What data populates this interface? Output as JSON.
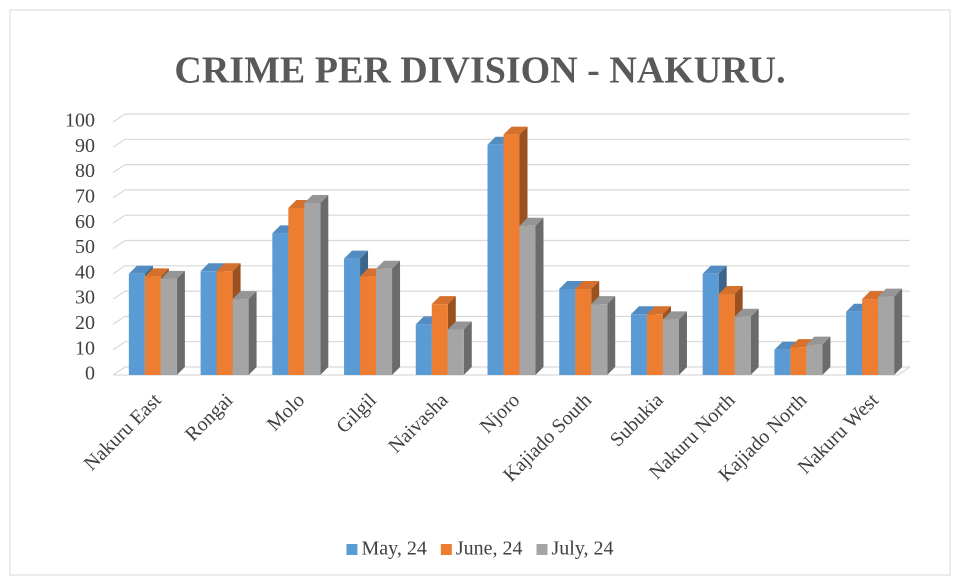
{
  "chart_data": {
    "type": "bar3d",
    "title": "CRIME PER DIVISION - NAKURU.",
    "categories": [
      "Nakuru East",
      "Rongai",
      "Molo",
      "Gilgil",
      "Naivasha",
      "Njoro",
      "Kajiado South",
      "Subukia",
      "Nakuru North",
      "Kajiado North",
      "Nakuru West"
    ],
    "series": [
      {
        "name": "May, 24",
        "color": "#5b9bd5",
        "values": [
          40,
          41,
          56,
          46,
          20,
          91,
          34,
          24,
          40,
          10,
          25
        ]
      },
      {
        "name": "June, 24",
        "color": "#ed7d31",
        "values": [
          39,
          41,
          66,
          39,
          28,
          95,
          34,
          24,
          32,
          11,
          30
        ]
      },
      {
        "name": "July, 24",
        "color": "#a5a5a5",
        "values": [
          38,
          30,
          68,
          42,
          18,
          59,
          28,
          22,
          23,
          12,
          31
        ]
      }
    ],
    "ylim": [
      0,
      100
    ],
    "yticks": [
      0,
      10,
      20,
      30,
      40,
      50,
      60,
      70,
      80,
      90,
      100
    ],
    "grid": true,
    "legend": "bottom"
  }
}
